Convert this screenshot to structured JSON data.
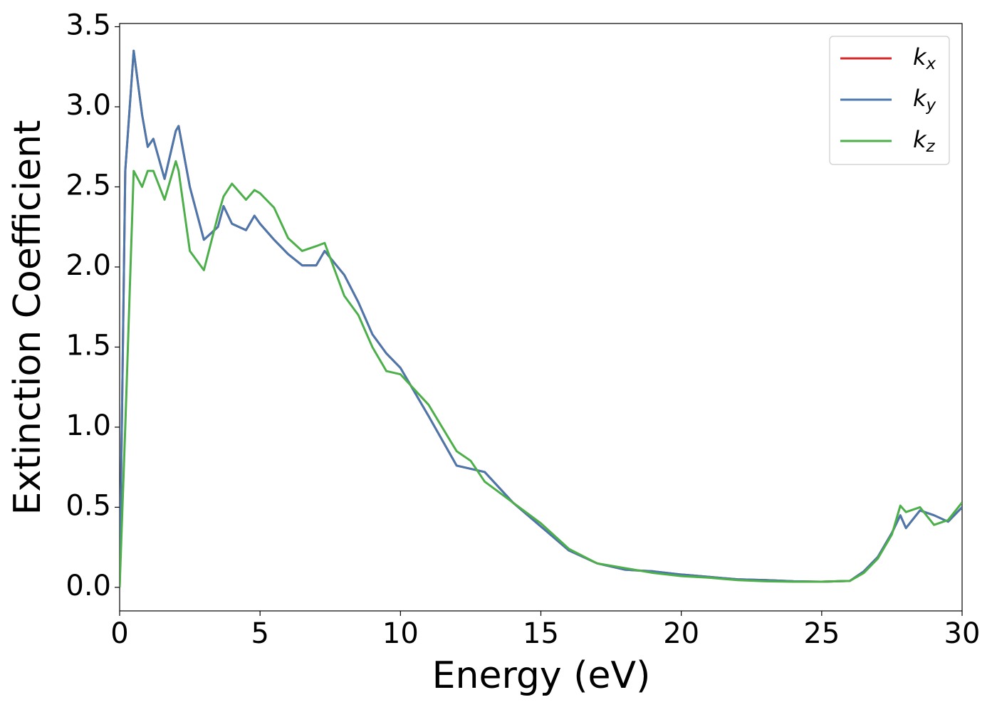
{
  "chart_data": {
    "type": "line",
    "x_label": "Energy (eV)",
    "y_label": "Extinction Coefficient",
    "x": [
      0,
      0.2,
      0.5,
      0.8,
      1.0,
      1.2,
      1.6,
      2.0,
      2.1,
      2.5,
      3.0,
      3.5,
      3.7,
      4.0,
      4.5,
      4.8,
      5.0,
      5.5,
      6.0,
      6.5,
      7.0,
      7.3,
      8.0,
      8.5,
      9.0,
      9.5,
      10.0,
      11.0,
      12.0,
      12.5,
      13.0,
      14.0,
      15.0,
      16.0,
      17.0,
      18.0,
      19.0,
      20.0,
      21.0,
      22.0,
      23.0,
      24.0,
      25.0,
      26.0,
      26.5,
      27.0,
      27.5,
      27.8,
      28.0,
      28.5,
      29.0,
      29.5,
      30.0
    ],
    "series": [
      {
        "name": "kx",
        "color": "#d62728",
        "values": [
          0,
          2.6,
          3.35,
          2.95,
          2.75,
          2.8,
          2.55,
          2.85,
          2.88,
          2.5,
          2.17,
          2.25,
          2.38,
          2.27,
          2.23,
          2.32,
          2.27,
          2.17,
          2.08,
          2.01,
          2.01,
          2.1,
          1.95,
          1.78,
          1.58,
          1.46,
          1.37,
          1.07,
          0.76,
          0.74,
          0.72,
          0.53,
          0.38,
          0.23,
          0.15,
          0.11,
          0.1,
          0.08,
          0.065,
          0.05,
          0.045,
          0.038,
          0.035,
          0.04,
          0.1,
          0.19,
          0.34,
          0.45,
          0.37,
          0.48,
          0.45,
          0.41,
          0.5
        ]
      },
      {
        "name": "ky",
        "color": "#4a78ad",
        "values": [
          0,
          2.6,
          3.35,
          2.95,
          2.75,
          2.8,
          2.55,
          2.85,
          2.88,
          2.5,
          2.17,
          2.25,
          2.38,
          2.27,
          2.23,
          2.32,
          2.27,
          2.17,
          2.08,
          2.01,
          2.01,
          2.1,
          1.95,
          1.78,
          1.58,
          1.46,
          1.37,
          1.07,
          0.76,
          0.74,
          0.72,
          0.53,
          0.38,
          0.23,
          0.15,
          0.11,
          0.1,
          0.08,
          0.065,
          0.05,
          0.045,
          0.038,
          0.035,
          0.04,
          0.1,
          0.19,
          0.34,
          0.45,
          0.37,
          0.48,
          0.45,
          0.41,
          0.5
        ]
      },
      {
        "name": "kz",
        "color": "#4daf4a",
        "values": [
          0,
          1.0,
          2.6,
          2.5,
          2.6,
          2.6,
          2.42,
          2.66,
          2.6,
          2.1,
          1.98,
          2.32,
          2.44,
          2.52,
          2.42,
          2.48,
          2.46,
          2.37,
          2.18,
          2.1,
          2.13,
          2.15,
          1.82,
          1.7,
          1.5,
          1.35,
          1.33,
          1.14,
          0.85,
          0.79,
          0.66,
          0.53,
          0.4,
          0.24,
          0.15,
          0.12,
          0.09,
          0.07,
          0.06,
          0.045,
          0.038,
          0.035,
          0.035,
          0.04,
          0.09,
          0.18,
          0.33,
          0.51,
          0.47,
          0.5,
          0.39,
          0.42,
          0.53
        ]
      }
    ],
    "xlim": [
      0,
      30
    ],
    "xticks": [
      0,
      5,
      10,
      15,
      20,
      25,
      30
    ],
    "ylim": [
      -0.147,
      3.52
    ],
    "yticks": [
      {
        "value": 0,
        "label": "0.0"
      },
      0.5,
      {
        "value": 1,
        "label": "1.0"
      },
      1.5,
      {
        "value": 2,
        "label": "2.0"
      },
      2.5,
      {
        "value": 3,
        "label": "3.0"
      },
      3.5
    ],
    "grid": false,
    "legend": "upper right"
  }
}
